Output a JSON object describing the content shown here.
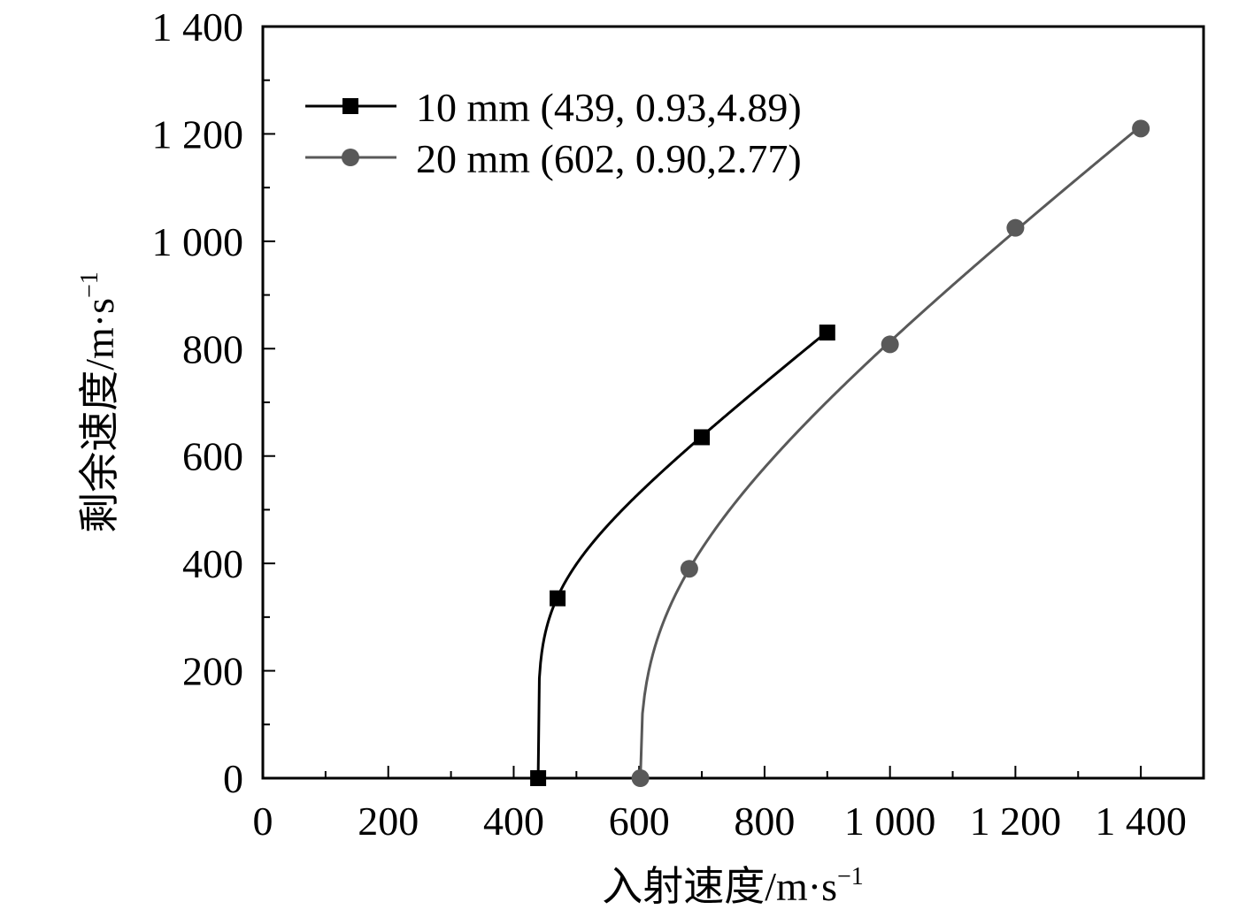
{
  "chart_data": {
    "type": "scatter",
    "xlabel": "入射速度/m·s",
    "xlabel_sup": "−1",
    "ylabel": "剩余速度/m·s",
    "ylabel_sup": "−1",
    "xlim": [
      0,
      1500
    ],
    "ylim": [
      0,
      1400
    ],
    "x_ticks": [
      0,
      200,
      400,
      600,
      800,
      1000,
      1200,
      1400
    ],
    "x_tick_labels": [
      "0",
      "200",
      "400",
      "600",
      "800",
      "1 000",
      "1 200",
      "1 400"
    ],
    "y_ticks": [
      0,
      200,
      400,
      600,
      800,
      1000,
      1200,
      1400
    ],
    "y_tick_labels": [
      "0",
      "200",
      "400",
      "600",
      "800",
      "1 000",
      "1 200",
      "1 400"
    ],
    "x_minor_step": 100,
    "y_minor_step": 100,
    "grid": false,
    "legend_position": "top-left",
    "series": [
      {
        "name": "10 mm (439, 0.93,4.89)",
        "color": "#000000",
        "marker": "square",
        "x": [
          439,
          470,
          700,
          900
        ],
        "y": [
          0,
          335,
          635,
          830
        ],
        "fit": {
          "vbl": 439,
          "a": 0.93,
          "p": 4.89,
          "x_max": 900
        }
      },
      {
        "name": "20 mm (602, 0.90,2.77)",
        "color": "#595959",
        "marker": "circle",
        "x": [
          602,
          680,
          1000,
          1200,
          1400
        ],
        "y": [
          0,
          390,
          808,
          1025,
          1210
        ],
        "fit": {
          "vbl": 602,
          "a": 0.9,
          "p": 2.77,
          "x_max": 1400
        }
      }
    ]
  }
}
